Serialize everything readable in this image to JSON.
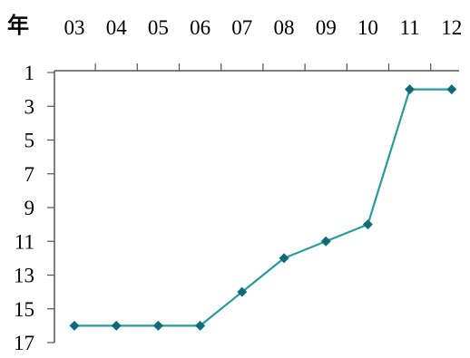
{
  "chart_data": {
    "type": "line",
    "x_axis_label": "年",
    "categories": [
      "03",
      "04",
      "05",
      "06",
      "07",
      "08",
      "09",
      "10",
      "11",
      "12"
    ],
    "series": [
      {
        "values": [
          16,
          16,
          16,
          16,
          14,
          12,
          11,
          10,
          2,
          2
        ]
      }
    ],
    "y_ticks": [
      1,
      3,
      5,
      7,
      9,
      11,
      13,
      15,
      17
    ],
    "ylim": [
      1,
      17
    ],
    "y_inverted": true,
    "x_axis_position": "top",
    "grid": false,
    "legend": "none",
    "line_color": "#2a9a9a",
    "marker_color": "#0d6b78",
    "axis_color": "#555555"
  }
}
